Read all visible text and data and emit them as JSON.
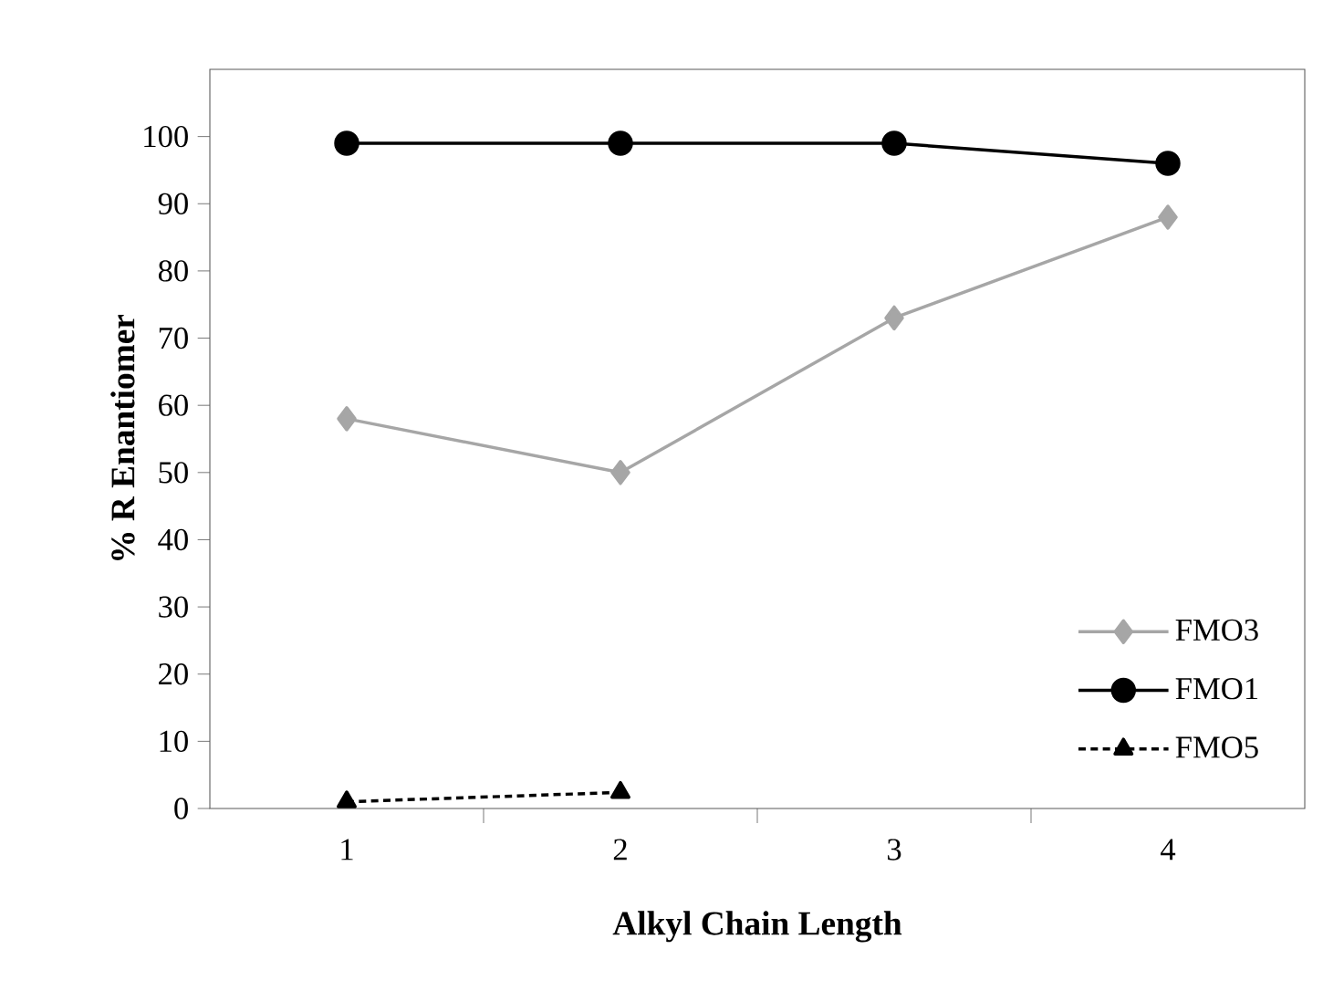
{
  "chart_data": {
    "type": "line",
    "xlabel": "Alkyl Chain Length",
    "ylabel": "% R Enantiomer",
    "categories": [
      "1",
      "2",
      "3",
      "4"
    ],
    "ylim": [
      0,
      110
    ],
    "yticks": [
      0,
      10,
      20,
      30,
      40,
      50,
      60,
      70,
      80,
      90,
      100
    ],
    "grid": false,
    "legend": "bottom right",
    "series": [
      {
        "name": "FMO3",
        "color": "#a6a6a6",
        "values": [
          58,
          50,
          73,
          88
        ],
        "marker": "diamond",
        "line_style": "solid"
      },
      {
        "name": "FMO1",
        "color": "#000000",
        "values": [
          99,
          99,
          99,
          96
        ],
        "marker": "circle",
        "line_style": "solid"
      },
      {
        "name": "FMO5",
        "color": "#000000",
        "values": [
          1,
          2.4,
          null,
          null
        ],
        "marker": "triangle",
        "line_style": "dashed"
      }
    ]
  }
}
